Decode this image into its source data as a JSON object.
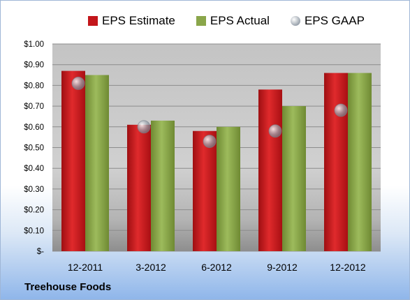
{
  "chart_data": {
    "type": "bar",
    "title": "",
    "caption": "Treehouse Foods",
    "categories": [
      "12-2011",
      "3-2012",
      "6-2012",
      "9-2012",
      "12-2012"
    ],
    "series": [
      {
        "name": "EPS Estimate",
        "type": "bar",
        "values": [
          0.87,
          0.61,
          0.58,
          0.78,
          0.86
        ],
        "color": "#c3161b"
      },
      {
        "name": "EPS Actual",
        "type": "bar",
        "values": [
          0.85,
          0.63,
          0.6,
          0.7,
          0.86
        ],
        "color": "#8aa64a"
      },
      {
        "name": "EPS GAAP",
        "type": "scatter",
        "values": [
          0.81,
          0.6,
          0.53,
          0.58,
          0.68
        ],
        "color": "#9aa3ad"
      }
    ],
    "ylim": [
      0,
      1.0
    ],
    "yticks": [
      0,
      0.1,
      0.2,
      0.3,
      0.4,
      0.5,
      0.6,
      0.7,
      0.8,
      0.9,
      1.0
    ],
    "ytick_labels": [
      "$-",
      "$0.10",
      "$0.20",
      "$0.30",
      "$0.40",
      "$0.50",
      "$0.60",
      "$0.70",
      "$0.80",
      "$0.90",
      "$1.00"
    ],
    "grid": true,
    "legend_position": "top"
  }
}
